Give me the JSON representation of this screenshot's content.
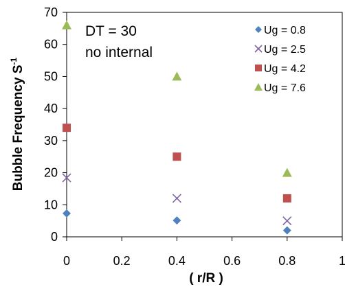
{
  "chart_data": {
    "type": "scatter",
    "annotations": [
      "DT = 30",
      "no internal"
    ],
    "xlabel": "( r/R )",
    "ylabel": "Bubble Frequency S",
    "ylabel_superscript": "-1",
    "xlim": [
      0,
      1
    ],
    "ylim": [
      0,
      70
    ],
    "x_ticks": [
      "0",
      "0.2",
      "0.4",
      "0.6",
      "0.8",
      "1"
    ],
    "y_ticks": [
      "0",
      "10",
      "20",
      "30",
      "40",
      "50",
      "60",
      "70"
    ],
    "grid": false,
    "legend_position": "top-right",
    "series": [
      {
        "name": "Ug = 0.8",
        "marker": "diamond",
        "color": "#4F81BD",
        "x": [
          0,
          0.4,
          0.8
        ],
        "y": [
          7.3,
          5.1,
          2.0
        ]
      },
      {
        "name": "Ug = 2.5",
        "marker": "cross",
        "color": "#8064A2",
        "x": [
          0,
          0.4,
          0.8
        ],
        "y": [
          18.4,
          12.0,
          5.0
        ]
      },
      {
        "name": "Ug = 4.2",
        "marker": "square",
        "color": "#C0504D",
        "x": [
          0,
          0.4,
          0.8
        ],
        "y": [
          34.0,
          25.0,
          12.0
        ]
      },
      {
        "name": "Ug = 7.6",
        "marker": "triangle",
        "color": "#9BBB59",
        "x": [
          0,
          0.4,
          0.8
        ],
        "y": [
          66.0,
          50.0,
          20.0
        ]
      }
    ]
  }
}
